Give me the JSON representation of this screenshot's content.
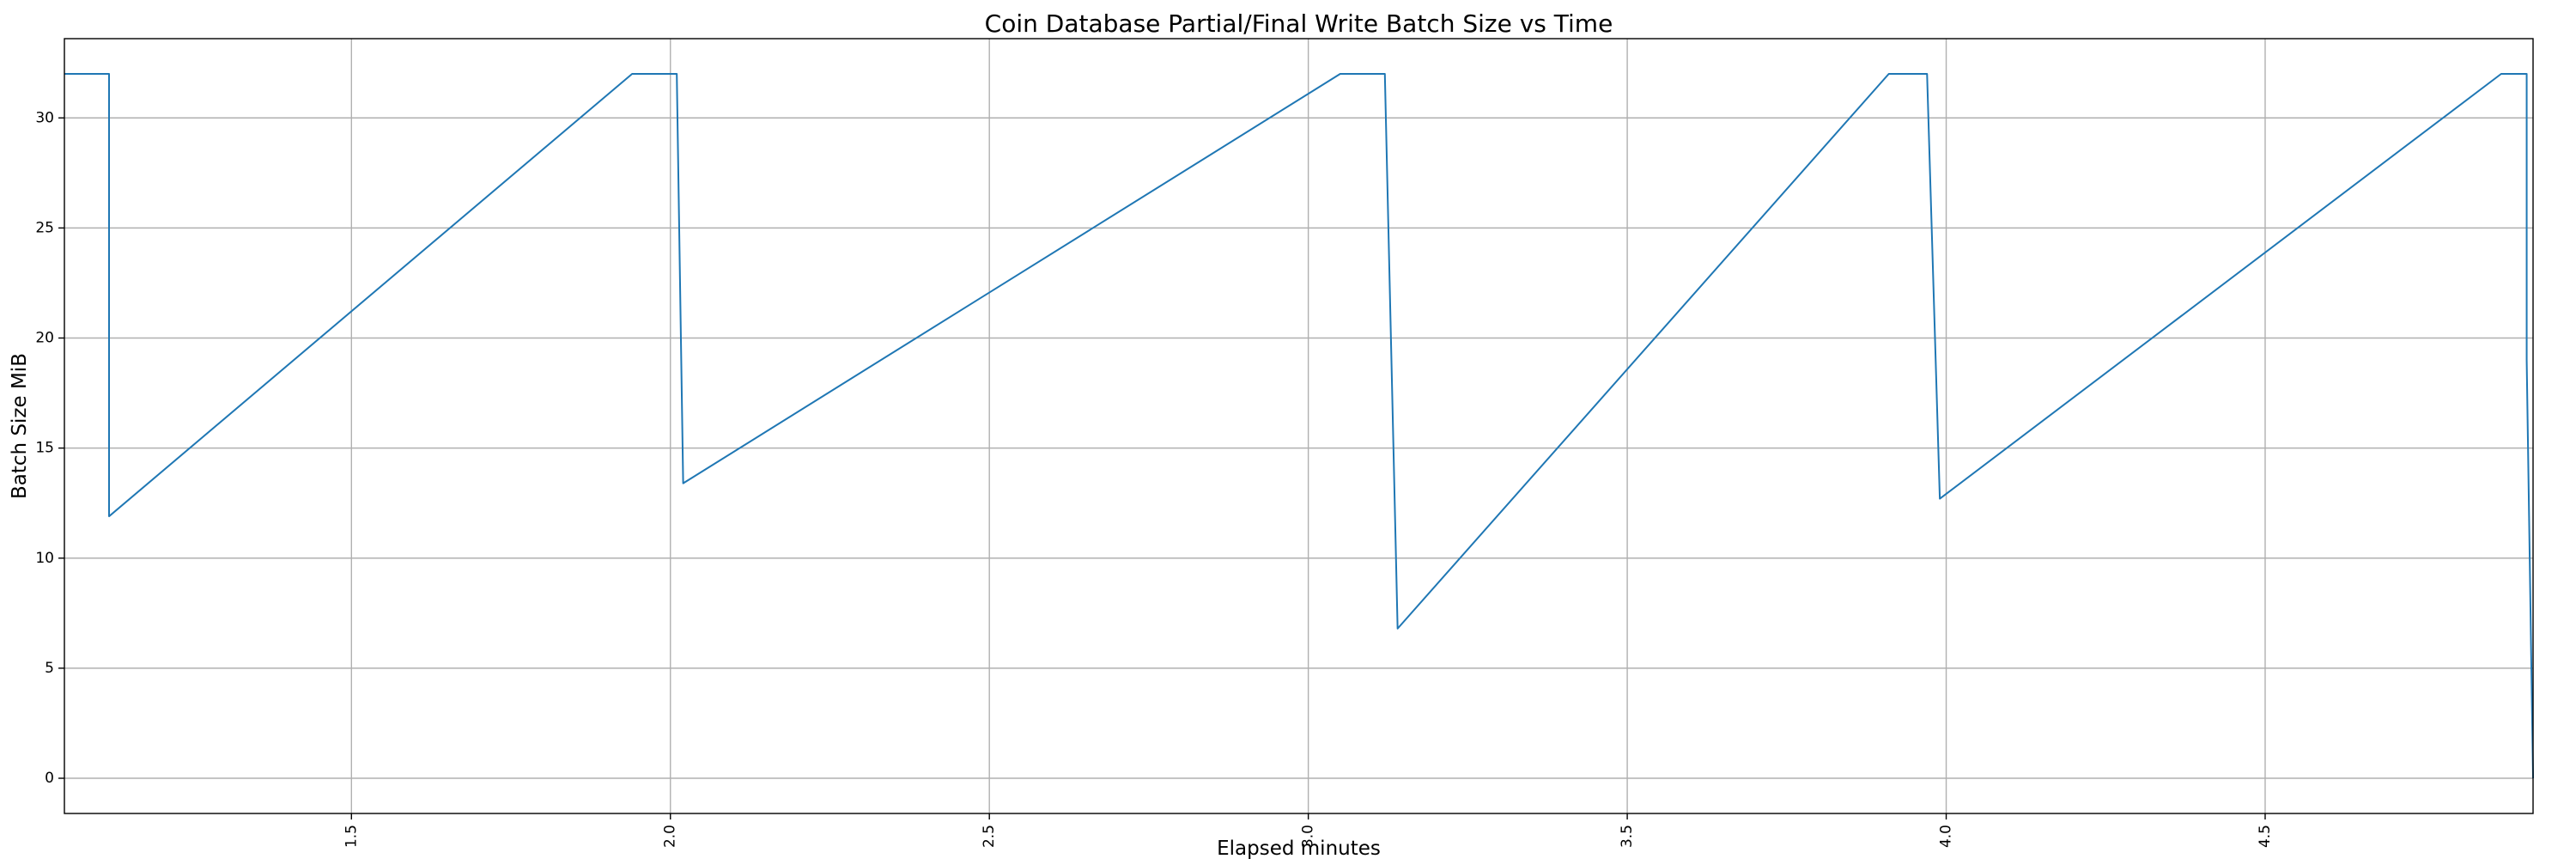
{
  "chart_data": {
    "type": "line",
    "title": "Coin Database Partial/Final Write Batch Size vs Time",
    "xlabel": "Elapsed minutes",
    "ylabel": "Batch Size MiB",
    "xlim": [
      1.05,
      4.92
    ],
    "ylim": [
      -1.6,
      33.6
    ],
    "x_ticks": [
      1.5,
      2.0,
      2.5,
      3.0,
      3.5,
      4.0,
      4.5
    ],
    "x_tick_labels": [
      "1.5",
      "2.0",
      "2.5",
      "3.0",
      "3.5",
      "4.0",
      "4.5"
    ],
    "y_ticks": [
      0,
      5,
      10,
      15,
      20,
      25,
      30
    ],
    "y_tick_labels": [
      "0",
      "5",
      "10",
      "15",
      "20",
      "25",
      "30"
    ],
    "grid": true,
    "legend": "none",
    "colors": {
      "series": "#1f77b4"
    },
    "series": [
      {
        "x": [
          1.05,
          1.12,
          1.12,
          1.94,
          2.01,
          2.02,
          3.05,
          3.12,
          3.14,
          3.91,
          3.97,
          3.99,
          4.87,
          4.91,
          4.91,
          4.92
        ],
        "values": [
          32,
          32,
          11.9,
          32,
          32,
          13.4,
          32,
          32,
          6.8,
          32,
          32,
          12.7,
          32,
          32,
          19,
          0
        ]
      }
    ]
  }
}
